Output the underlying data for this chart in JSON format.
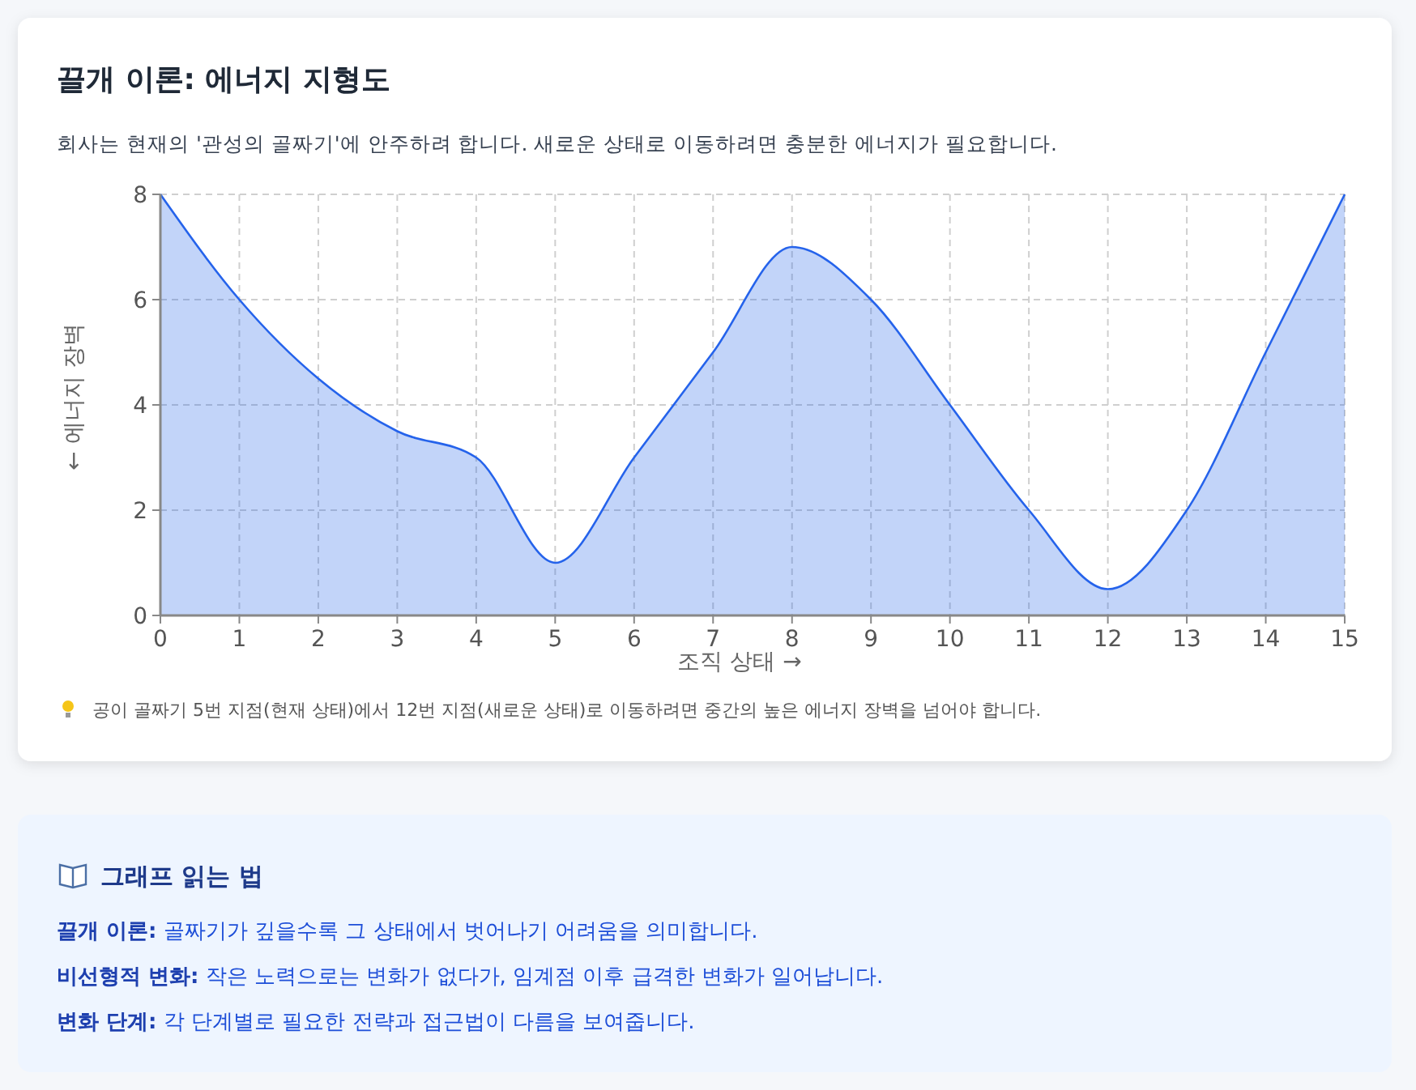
{
  "chart_data": [
    {
      "type": "area",
      "title": "끌개 이론: 에너지 지형도",
      "subtitle": "회사는 현재의 '관성의 골짜기'에 안주하려 합니다. 새로운 상태로 이동하려면 충분한 에너지가 필요합니다.",
      "xlabel": "조직 상태 →",
      "ylabel": "← 에너지 장벽",
      "x": [
        0,
        1,
        2,
        3,
        4,
        5,
        6,
        7,
        8,
        9,
        10,
        11,
        12,
        13,
        14,
        15
      ],
      "series": [
        {
          "color": "#2563eb",
          "values": [
            8,
            6,
            4.5,
            3.5,
            3,
            1,
            3,
            5,
            7,
            6,
            4,
            2,
            0.5,
            2,
            5,
            8
          ]
        }
      ],
      "xlim": [
        0,
        15
      ],
      "xticks": [
        0,
        1,
        2,
        3,
        4,
        5,
        6,
        7,
        8,
        9,
        10,
        11,
        12,
        13,
        14,
        15
      ],
      "ylim": [
        0,
        8
      ],
      "yticks": [
        0,
        2,
        4,
        6,
        8
      ],
      "grid": true,
      "annotations": [
        "공이 골짜기 5번 지점(현재 상태)에서 12번 지점(새로운 상태)로 이동하려면 중간의 높은 에너지 장벽을 넘어야 합니다."
      ]
    },
    {
      "type": "other",
      "title": "그래프 읽는 법",
      "annotations": [
        "끌개 이론: 골짜기가 깊을수록 그 상태에서 벗어나기 어려움을 의미합니다.",
        "비선형적 변화: 작은 노력으로는 변화가 없다가, 임계점 이후 급격한 변화가 일어납니다.",
        "변화 단계: 각 단계별로 필요한 전략과 접근법이 다름을 보여줍니다."
      ]
    }
  ]
}
